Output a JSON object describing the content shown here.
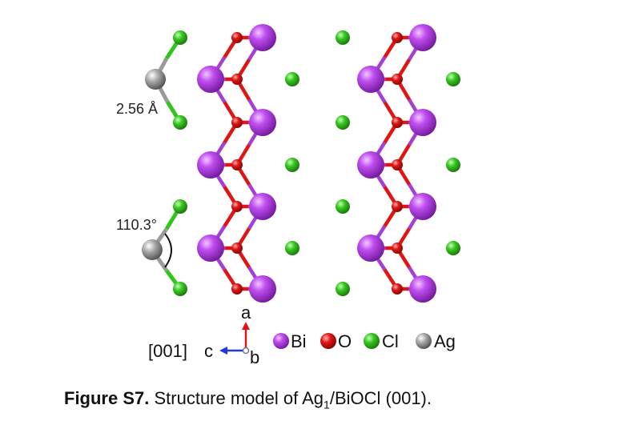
{
  "figure": {
    "bond_length_label": "2.56 Å",
    "bond_angle_label": "110.3°",
    "axes": {
      "a_label": "a",
      "c_label": "c",
      "b_label": "b",
      "direction_label": "[001]"
    },
    "legend": [
      {
        "label": "Bi",
        "color": "#a43fd6"
      },
      {
        "label": "O",
        "color": "#e01414"
      },
      {
        "label": "Cl",
        "color": "#33c41e"
      },
      {
        "label": "Ag",
        "color": "#9a9a9a"
      }
    ],
    "colors": {
      "Bi": "#a43fd6",
      "O": "#e01414",
      "Cl": "#33c41e",
      "Ag": "#9a9a9a",
      "axis_a": "#e01414",
      "axis_c": "#1e3ad6"
    }
  },
  "caption": {
    "label": "Figure S7.",
    "text_before": "Structure model of Ag",
    "subscript": "1",
    "text_after": "/BiOCl (001)."
  }
}
